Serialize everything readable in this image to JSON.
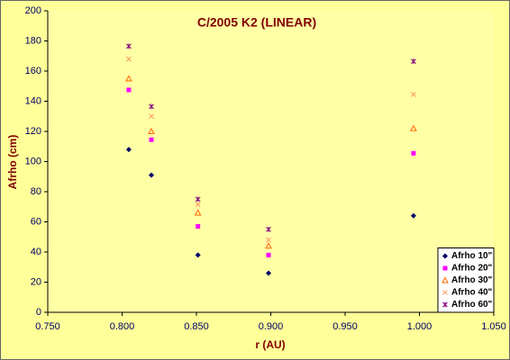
{
  "chart_data": {
    "type": "scatter",
    "title": "C/2005 K2 (LINEAR)",
    "x_label": "r (AU)",
    "y_label": "Afrho (cm)",
    "xlim": [
      0.75,
      1.05
    ],
    "ylim": [
      0,
      200
    ],
    "xticks": [
      {
        "value": 0.75,
        "label": "0.750"
      },
      {
        "value": 0.8,
        "label": "0.800"
      },
      {
        "value": 0.85,
        "label": "0.850"
      },
      {
        "value": 0.9,
        "label": "0.900"
      },
      {
        "value": 0.95,
        "label": "0.950"
      },
      {
        "value": 1.0,
        "label": "1.000"
      },
      {
        "value": 1.05,
        "label": "1.050"
      }
    ],
    "yticks": [
      0,
      20,
      40,
      60,
      80,
      100,
      120,
      140,
      160,
      180,
      200
    ],
    "x": [
      0.8045,
      0.8197,
      0.851,
      0.8985,
      0.996
    ],
    "legend": "lower right",
    "series": [
      {
        "name": "Afrho 10\"",
        "color": "#000066",
        "marker": "diamond",
        "values": [
          108,
          91,
          38,
          26,
          64
        ]
      },
      {
        "name": "Afrho 20\"",
        "color": "#ff00ff",
        "marker": "square",
        "values": [
          147.5,
          114.5,
          57,
          38,
          105.5
        ]
      },
      {
        "name": "Afrho 30\"",
        "color": "#ff6600",
        "marker": "triangle",
        "values": [
          155,
          120,
          66,
          44,
          122
        ]
      },
      {
        "name": "Afrho 40\"",
        "color": "#ff9966",
        "marker": "x",
        "values": [
          168,
          130,
          71.5,
          48,
          144.5
        ]
      },
      {
        "name": "Afrho 60\"",
        "color": "#800080",
        "marker": "star",
        "values": [
          176.5,
          136.5,
          75,
          55,
          166.5
        ]
      }
    ]
  }
}
